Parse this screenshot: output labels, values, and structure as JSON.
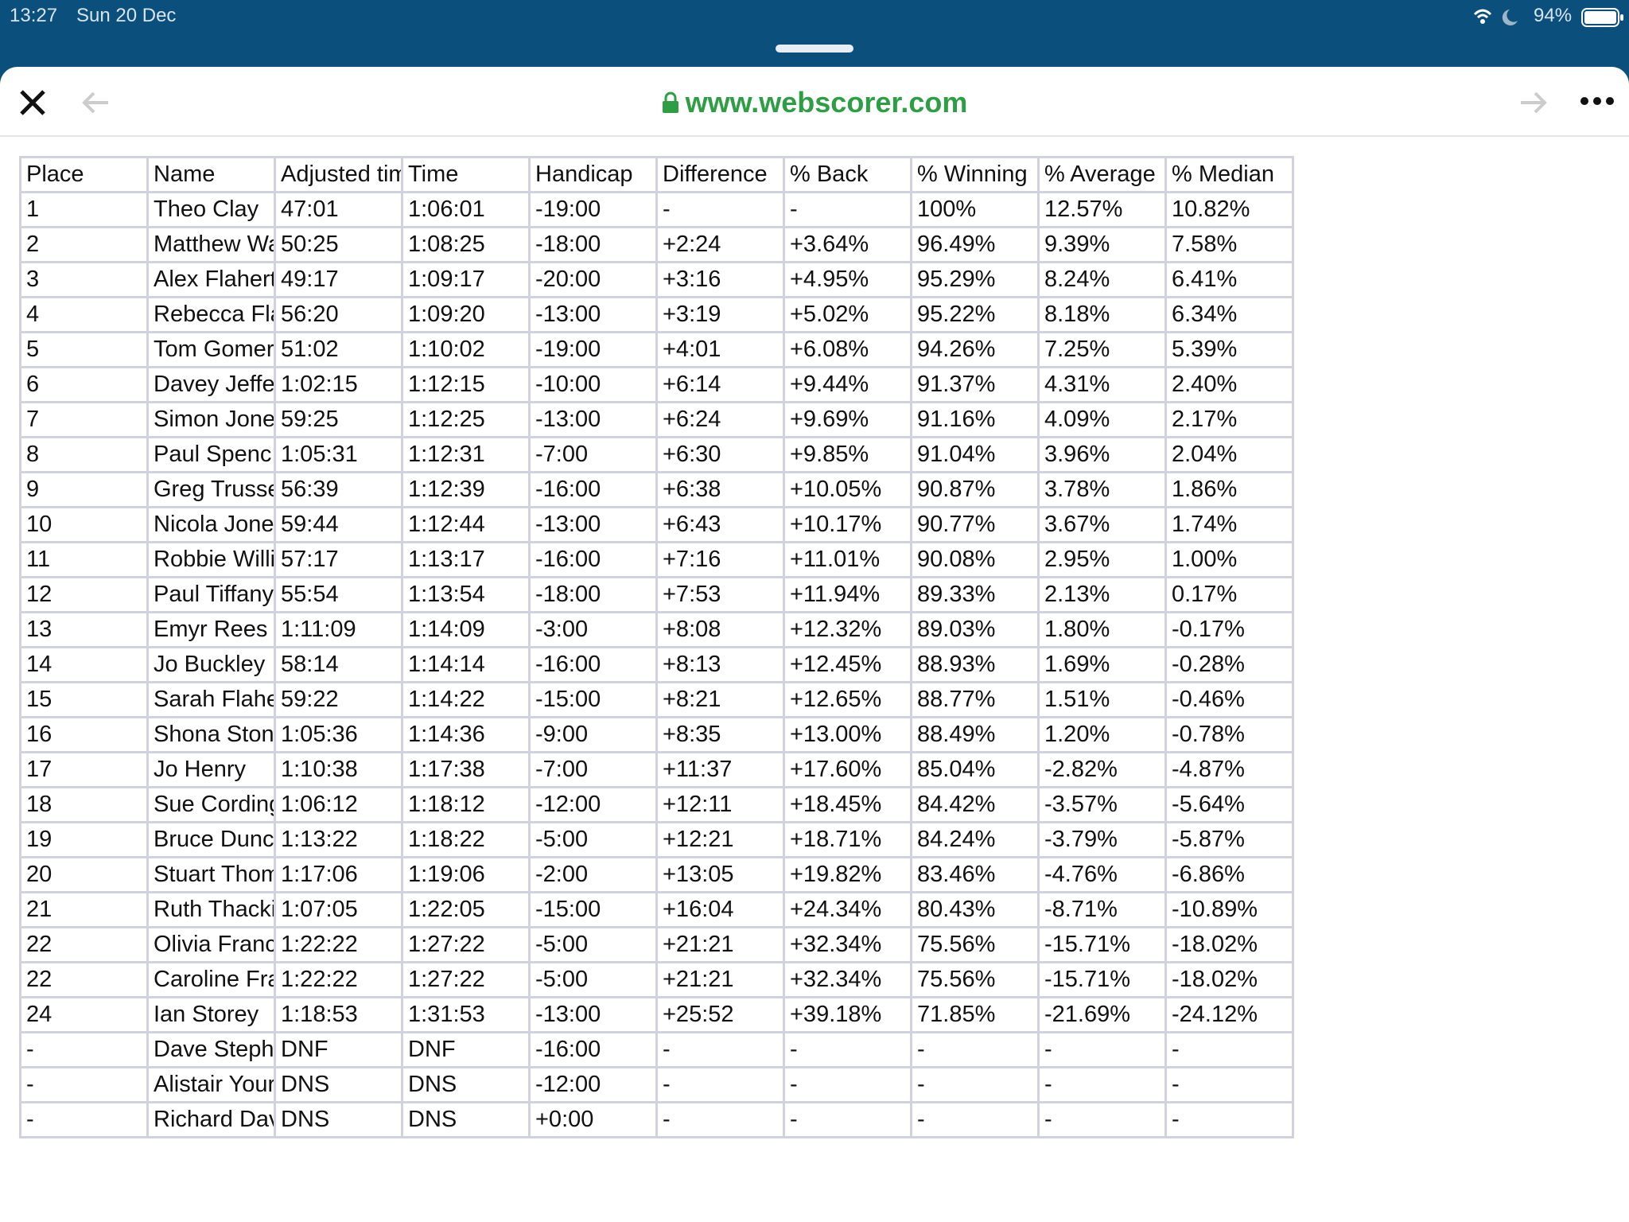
{
  "status_bar": {
    "time": "13:27",
    "date": "Sun 20 Dec",
    "battery": "94%"
  },
  "toolbar": {
    "url": "www.webscorer.com"
  },
  "table": {
    "header": [
      "Place",
      "Name",
      "Adjusted tim",
      "Time",
      "Handicap",
      "Difference",
      "% Back",
      "% Winning",
      "% Average",
      "% Median"
    ],
    "rows": [
      [
        "1",
        "Theo Clay",
        "47:01",
        "1:06:01",
        "-19:00",
        "-",
        "-",
        "100%",
        "12.57%",
        "10.82%"
      ],
      [
        "2",
        "Matthew Wa",
        "50:25",
        "1:08:25",
        "-18:00",
        "+2:24",
        "+3.64%",
        "96.49%",
        "9.39%",
        "7.58%"
      ],
      [
        "3",
        "Alex Flahert",
        "49:17",
        "1:09:17",
        "-20:00",
        "+3:16",
        "+4.95%",
        "95.29%",
        "8.24%",
        "6.41%"
      ],
      [
        "4",
        "Rebecca Fla",
        "56:20",
        "1:09:20",
        "-13:00",
        "+3:19",
        "+5.02%",
        "95.22%",
        "8.18%",
        "6.34%"
      ],
      [
        "5",
        "Tom Gomer",
        "51:02",
        "1:10:02",
        "-19:00",
        "+4:01",
        "+6.08%",
        "94.26%",
        "7.25%",
        "5.39%"
      ],
      [
        "6",
        "Davey Jeffe",
        "1:02:15",
        "1:12:15",
        "-10:00",
        "+6:14",
        "+9.44%",
        "91.37%",
        "4.31%",
        "2.40%"
      ],
      [
        "7",
        "Simon Jone",
        "59:25",
        "1:12:25",
        "-13:00",
        "+6:24",
        "+9.69%",
        "91.16%",
        "4.09%",
        "2.17%"
      ],
      [
        "8",
        "Paul Spenc",
        "1:05:31",
        "1:12:31",
        "-7:00",
        "+6:30",
        "+9.85%",
        "91.04%",
        "3.96%",
        "2.04%"
      ],
      [
        "9",
        "Greg Trusse",
        "56:39",
        "1:12:39",
        "-16:00",
        "+6:38",
        "+10.05%",
        "90.87%",
        "3.78%",
        "1.86%"
      ],
      [
        "10",
        "Nicola Jone",
        "59:44",
        "1:12:44",
        "-13:00",
        "+6:43",
        "+10.17%",
        "90.77%",
        "3.67%",
        "1.74%"
      ],
      [
        "11",
        "Robbie Willi",
        "57:17",
        "1:13:17",
        "-16:00",
        "+7:16",
        "+11.01%",
        "90.08%",
        "2.95%",
        "1.00%"
      ],
      [
        "12",
        "Paul Tiffany",
        "55:54",
        "1:13:54",
        "-18:00",
        "+7:53",
        "+11.94%",
        "89.33%",
        "2.13%",
        "0.17%"
      ],
      [
        "13",
        "Emyr Rees",
        "1:11:09",
        "1:14:09",
        "-3:00",
        "+8:08",
        "+12.32%",
        "89.03%",
        "1.80%",
        "-0.17%"
      ],
      [
        "14",
        "Jo Buckley",
        "58:14",
        "1:14:14",
        "-16:00",
        "+8:13",
        "+12.45%",
        "88.93%",
        "1.69%",
        "-0.28%"
      ],
      [
        "15",
        "Sarah Flahe",
        "59:22",
        "1:14:22",
        "-15:00",
        "+8:21",
        "+12.65%",
        "88.77%",
        "1.51%",
        "-0.46%"
      ],
      [
        "16",
        "Shona Ston",
        "1:05:36",
        "1:14:36",
        "-9:00",
        "+8:35",
        "+13.00%",
        "88.49%",
        "1.20%",
        "-0.78%"
      ],
      [
        "17",
        "Jo Henry",
        "1:10:38",
        "1:17:38",
        "-7:00",
        "+11:37",
        "+17.60%",
        "85.04%",
        "-2.82%",
        "-4.87%"
      ],
      [
        "18",
        "Sue Cording",
        "1:06:12",
        "1:18:12",
        "-12:00",
        "+12:11",
        "+18.45%",
        "84.42%",
        "-3.57%",
        "-5.64%"
      ],
      [
        "19",
        "Bruce Dunc",
        "1:13:22",
        "1:18:22",
        "-5:00",
        "+12:21",
        "+18.71%",
        "84.24%",
        "-3.79%",
        "-5.87%"
      ],
      [
        "20",
        "Stuart Thom",
        "1:17:06",
        "1:19:06",
        "-2:00",
        "+13:05",
        "+19.82%",
        "83.46%",
        "-4.76%",
        "-6.86%"
      ],
      [
        "21",
        "Ruth Thacki",
        "1:07:05",
        "1:22:05",
        "-15:00",
        "+16:04",
        "+24.34%",
        "80.43%",
        "-8.71%",
        "-10.89%"
      ],
      [
        "22",
        "Olivia Franc",
        "1:22:22",
        "1:27:22",
        "-5:00",
        "+21:21",
        "+32.34%",
        "75.56%",
        "-15.71%",
        "-18.02%"
      ],
      [
        "22",
        "Caroline Fra",
        "1:22:22",
        "1:27:22",
        "-5:00",
        "+21:21",
        "+32.34%",
        "75.56%",
        "-15.71%",
        "-18.02%"
      ],
      [
        "24",
        "Ian Storey",
        "1:18:53",
        "1:31:53",
        "-13:00",
        "+25:52",
        "+39.18%",
        "71.85%",
        "-21.69%",
        "-24.12%"
      ],
      [
        "-",
        "Dave Steph",
        "DNF",
        "DNF",
        "-16:00",
        "-",
        "-",
        "-",
        "-",
        "-"
      ],
      [
        "-",
        "Alistair Your",
        "DNS",
        "DNS",
        "-12:00",
        "-",
        "-",
        "-",
        "-",
        "-"
      ],
      [
        "-",
        "Richard Dav",
        "DNS",
        "DNS",
        "+0:00",
        "-",
        "-",
        "-",
        "-",
        "-"
      ]
    ]
  }
}
